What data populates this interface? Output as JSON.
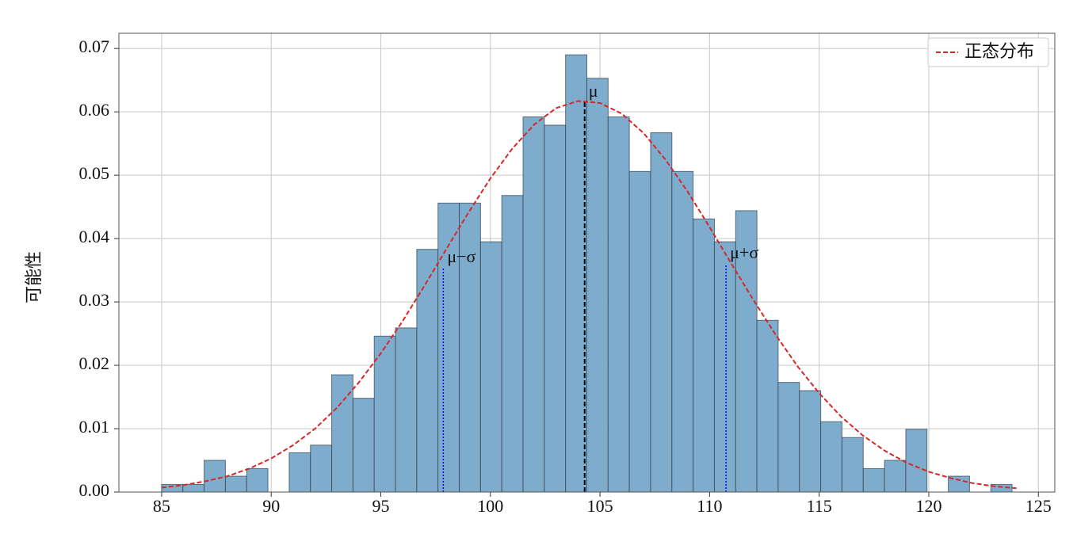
{
  "chart_data": {
    "type": "histogram",
    "y_label": "可能性",
    "bins": [
      85,
      85.97,
      86.94,
      87.91,
      88.88,
      89.85,
      90.82,
      91.79,
      92.76,
      93.73,
      94.7,
      95.67,
      96.64,
      97.61,
      98.58,
      99.55,
      100.52,
      101.49,
      102.46,
      103.43,
      104.4,
      105.37,
      106.34,
      107.31,
      108.28,
      109.25,
      110.22,
      111.19,
      112.16,
      113.13,
      114.1,
      115.07,
      116.04,
      117.01,
      117.98,
      118.95,
      119.92,
      120.89,
      121.86,
      122.83,
      123.8
    ],
    "values": [
      0.0012,
      0.0012,
      0.005,
      0.0025,
      0.0037,
      0,
      0.0062,
      0.0074,
      0.0185,
      0.0148,
      0.0246,
      0.0259,
      0.0383,
      0.0456,
      0.0456,
      0.0395,
      0.0468,
      0.0592,
      0.0579,
      0.069,
      0.0653,
      0.0592,
      0.0506,
      0.0567,
      0.0506,
      0.0431,
      0.0395,
      0.0444,
      0.0271,
      0.0173,
      0.016,
      0.0111,
      0.0086,
      0.0037,
      0.005,
      0.0099,
      0,
      0.0025,
      0,
      0.0012
    ],
    "color": "#7eaccd",
    "edge_color": "#2f3f4c",
    "line": {
      "name": "正态分布",
      "color": "#d62728",
      "x": [
        85,
        86,
        87,
        88,
        89,
        90,
        91,
        92,
        93,
        94,
        95,
        96,
        97,
        98,
        99,
        100,
        101,
        102,
        103,
        104,
        105,
        106,
        107,
        108,
        109,
        110,
        111,
        112,
        113,
        114,
        115,
        116,
        117,
        118,
        119,
        120,
        121,
        122,
        123,
        124
      ],
      "values": [
        0.0007,
        0.0011,
        0.0017,
        0.0025,
        0.0037,
        0.0053,
        0.0074,
        0.01,
        0.0133,
        0.0173,
        0.0219,
        0.027,
        0.0326,
        0.0384,
        0.0441,
        0.0495,
        0.0542,
        0.058,
        0.0606,
        0.0617,
        0.0614,
        0.0597,
        0.0566,
        0.0524,
        0.0474,
        0.0418,
        0.036,
        0.0303,
        0.0249,
        0.0199,
        0.0156,
        0.0119,
        0.0089,
        0.0065,
        0.0046,
        0.0032,
        0.0022,
        0.0014,
        0.0009,
        0.0006
      ]
    },
    "vlines": [
      {
        "label": "μ−σ",
        "x": 97.85,
        "ymax": 0.0354,
        "color": "#0000ff",
        "style": "dotted"
      },
      {
        "label": "μ",
        "x": 104.3,
        "ymax": 0.0615,
        "color": "#000000",
        "style": "dashed"
      },
      {
        "label": "μ+σ",
        "x": 110.75,
        "ymax": 0.036,
        "color": "#0000ff",
        "style": "dotted"
      }
    ],
    "xlim": [
      83.05,
      125.75
    ],
    "ylim": [
      0,
      0.0724
    ],
    "xticks": [
      85,
      90,
      95,
      100,
      105,
      110,
      115,
      120,
      125
    ],
    "yticks": [
      {
        "value": 0,
        "label": "0.00"
      },
      0.01,
      0.02,
      0.03,
      0.04,
      0.05,
      0.06,
      0.07
    ],
    "grid": true,
    "legend": "upper right"
  }
}
